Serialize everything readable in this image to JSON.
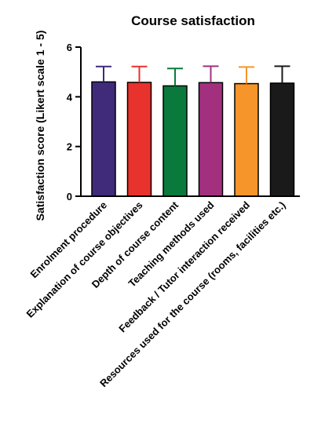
{
  "chart_data": {
    "type": "bar",
    "title": "Course satisfaction",
    "xlabel": "",
    "ylabel": "Satisfaction score  (Likert scale 1 - 5)",
    "ylim": [
      0,
      6
    ],
    "yticks": [
      0,
      2,
      4,
      6
    ],
    "grid": false,
    "legend": "none",
    "categories": [
      "Enrolment procedure",
      "Explanation of course objectives",
      "Depth of course content",
      "Teaching methods used",
      "Feedback / Tutor interaction received",
      "Resources used for the course (rooms, facilities etc.)"
    ],
    "values": [
      4.6,
      4.58,
      4.44,
      4.57,
      4.53,
      4.55
    ],
    "error_upper": [
      0.62,
      0.64,
      0.7,
      0.66,
      0.67,
      0.68
    ],
    "colors": [
      "#3f2b7a",
      "#e8322e",
      "#0a7a3c",
      "#a3307f",
      "#f5952a",
      "#1a1a1a"
    ]
  }
}
